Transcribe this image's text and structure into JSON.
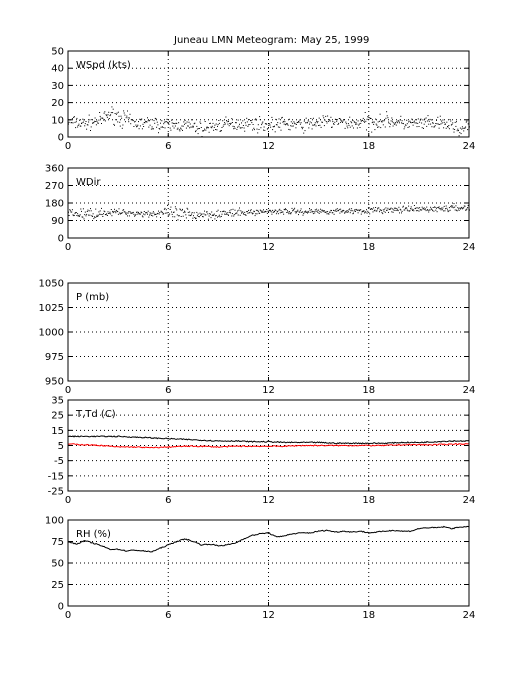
{
  "figure": {
    "title_left": "Juneau LMN Meteogram:",
    "title_right": "May 25, 1999"
  },
  "chart_data": [
    {
      "type": "scatter",
      "panel_label": "WSpd (kts)",
      "xlim": [
        0,
        24
      ],
      "xticks": [
        0,
        6,
        12,
        18,
        24
      ],
      "ylim": [
        0,
        50
      ],
      "yticks": [
        0,
        10,
        20,
        30,
        40,
        50
      ],
      "grid": true,
      "series": [
        {
          "color": "#000000",
          "marker": "dot",
          "x": [
            0,
            1,
            2,
            2.5,
            3,
            4,
            5,
            6,
            7,
            8,
            9,
            10,
            11,
            12,
            13,
            14,
            15,
            16,
            17,
            18,
            19,
            20,
            21,
            22,
            23,
            23.5,
            24
          ],
          "y": [
            9,
            8,
            10,
            14,
            12,
            8,
            8,
            7,
            7,
            5,
            7,
            8,
            8,
            7,
            8,
            7,
            9,
            9,
            8,
            9,
            10,
            8,
            8,
            8,
            7,
            4,
            7
          ],
          "spread": [
            3,
            3,
            3,
            3,
            4,
            3,
            3,
            3,
            3,
            3,
            3,
            3,
            3,
            3,
            3,
            3,
            3,
            3,
            3,
            4,
            3,
            3,
            3,
            3,
            3,
            3,
            3
          ]
        }
      ]
    },
    {
      "type": "scatter",
      "panel_label": "WDir",
      "xlim": [
        0,
        24
      ],
      "xticks": [
        0,
        6,
        12,
        18,
        24
      ],
      "ylim": [
        0,
        360
      ],
      "yticks": [
        0,
        90,
        180,
        270,
        360
      ],
      "grid": true,
      "series": [
        {
          "color": "#000000",
          "marker": "dot",
          "x": [
            0,
            1,
            2,
            3,
            4,
            5,
            6,
            7,
            8,
            9,
            10,
            11,
            12,
            13,
            14,
            15,
            16,
            17,
            18,
            19,
            20,
            21,
            22,
            23,
            24
          ],
          "y": [
            130,
            125,
            132,
            135,
            130,
            128,
            130,
            120,
            125,
            128,
            130,
            135,
            140,
            140,
            138,
            140,
            140,
            142,
            145,
            145,
            148,
            150,
            152,
            155,
            160
          ],
          "spread": [
            15,
            25,
            15,
            12,
            12,
            15,
            25,
            30,
            20,
            18,
            15,
            12,
            12,
            12,
            12,
            12,
            12,
            12,
            12,
            12,
            12,
            12,
            12,
            14,
            15
          ]
        }
      ]
    },
    {
      "type": "line",
      "panel_label": "P (mb)",
      "xlim": [
        0,
        24
      ],
      "xticks": [
        0,
        6,
        12,
        18,
        24
      ],
      "ylim": [
        950,
        1050
      ],
      "yticks": [
        950,
        975,
        1000,
        1025,
        1050
      ],
      "grid": true,
      "series": []
    },
    {
      "type": "line",
      "panel_label": "T,Td (C)",
      "xlim": [
        0,
        24
      ],
      "xticks": [
        0,
        6,
        12,
        18,
        24
      ],
      "ylim": [
        -25,
        35
      ],
      "yticks": [
        -25,
        -15,
        -5,
        5,
        15,
        25,
        35
      ],
      "grid": true,
      "series": [
        {
          "color": "#000000",
          "x": [
            0,
            1,
            2,
            3,
            4,
            5,
            6,
            7,
            8,
            9,
            10,
            11,
            12,
            13,
            14,
            15,
            16,
            17,
            18,
            19,
            20,
            21,
            22,
            23,
            24
          ],
          "y": [
            11,
            11,
            11,
            11,
            10.5,
            10,
            9.5,
            9,
            8.5,
            8,
            8,
            7.5,
            7.5,
            7,
            7,
            7,
            6.5,
            6.5,
            6.5,
            6.5,
            7,
            7,
            7.5,
            8,
            8
          ]
        },
        {
          "color": "#ff0000",
          "x": [
            0,
            1,
            2,
            3,
            4,
            5,
            6,
            7,
            8,
            9,
            10,
            11,
            12,
            13,
            14,
            15,
            16,
            17,
            18,
            19,
            20,
            21,
            22,
            23,
            24
          ],
          "y": [
            6,
            5.5,
            5,
            4,
            4,
            3.5,
            4,
            4.5,
            4.5,
            4,
            4.5,
            4.5,
            4.5,
            4.5,
            5,
            5,
            5,
            5,
            5,
            5,
            5.5,
            5.5,
            5.5,
            6,
            6
          ]
        }
      ]
    },
    {
      "type": "line",
      "panel_label": "RH (%)",
      "xlim": [
        0,
        24
      ],
      "xticks": [
        0,
        6,
        12,
        18,
        24
      ],
      "ylim": [
        0,
        100
      ],
      "yticks": [
        0,
        25,
        50,
        75,
        100
      ],
      "grid": true,
      "series": [
        {
          "color": "#000000",
          "x": [
            0,
            0.5,
            1,
            1.5,
            2,
            2.5,
            3,
            3.5,
            4,
            4.5,
            5,
            5.5,
            6,
            6.5,
            7,
            7.5,
            8,
            8.5,
            9,
            9.5,
            10,
            10.5,
            11,
            11.5,
            12,
            12.5,
            13,
            13.5,
            14,
            14.5,
            15,
            15.5,
            16,
            16.5,
            17,
            17.5,
            18,
            18.5,
            19,
            19.5,
            20,
            20.5,
            21,
            21.5,
            22,
            22.5,
            23,
            23.5,
            24
          ],
          "y": [
            75,
            72,
            76,
            73,
            70,
            66,
            66,
            64,
            65,
            64,
            63,
            67,
            71,
            75,
            78,
            75,
            71,
            72,
            70,
            71,
            73,
            78,
            82,
            84,
            85,
            80,
            82,
            84,
            85,
            85,
            87,
            88,
            86,
            87,
            86,
            87,
            85,
            86,
            87,
            88,
            87,
            87,
            90,
            91,
            91,
            92,
            90,
            92,
            92
          ]
        }
      ]
    }
  ]
}
